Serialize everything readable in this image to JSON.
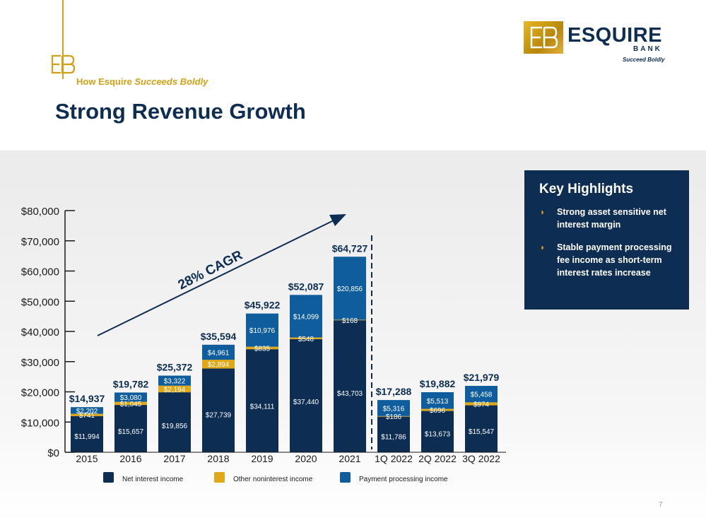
{
  "header": {
    "subtitle_prefix": "How Esquire",
    "subtitle_emphasis": "Succeeds Boldly",
    "title": "Strong Revenue Growth"
  },
  "logo": {
    "word": "ESQUIRE",
    "bank": "BANK",
    "tagline": "Succeed Boldly"
  },
  "key_highlights": {
    "title": "Key Highlights",
    "items": [
      "Strong asset sensitive net interest margin",
      "Stable payment processing fee income as short-term interest rates increase"
    ]
  },
  "colors": {
    "navy": "#0d2d52",
    "gold": "#e0a816",
    "blue": "#0f5d9c"
  },
  "page_number": "7",
  "chart_data": {
    "type": "bar",
    "stacked": true,
    "categories": [
      "2015",
      "2016",
      "2017",
      "2018",
      "2019",
      "2020",
      "2021",
      "1Q 2022",
      "2Q 2022",
      "3Q 2022"
    ],
    "series": [
      {
        "name": "Net interest income",
        "values": [
          11994,
          15657,
          19856,
          27739,
          34111,
          37440,
          43703,
          11786,
          13673,
          15547
        ],
        "labels": [
          "$11,994",
          "$15,657",
          "$19,856",
          "$27,739",
          "$34,111",
          "$37,440",
          "$43,703",
          "$11,786",
          "$13,673",
          "$15,547"
        ]
      },
      {
        "name": "Other noninterest income",
        "values": [
          741,
          1045,
          2194,
          2894,
          835,
          548,
          168,
          186,
          696,
          974
        ],
        "labels": [
          "$741",
          "$1,045",
          "$2,194",
          "$2,894",
          "$835",
          "$548",
          "$168",
          "$186",
          "$696",
          "$974"
        ]
      },
      {
        "name": "Payment processing income",
        "values": [
          2202,
          3080,
          3322,
          4961,
          10976,
          14099,
          20856,
          5316,
          5513,
          5458
        ],
        "labels": [
          "$2,202",
          "$3,080",
          "$3,322",
          "$4,961",
          "$10,976",
          "$14,099",
          "$20,856",
          "$5,316",
          "$5,513",
          "$5,458"
        ]
      }
    ],
    "totals": [
      "$14,937",
      "$19,782",
      "$25,372",
      "$35,594",
      "$45,922",
      "$52,087",
      "$64,727",
      "$17,288",
      "$19,882",
      "$21,979"
    ],
    "y_ticks": [
      "$0",
      "$10,000",
      "$20,000",
      "$30,000",
      "$40,000",
      "$50,000",
      "$60,000",
      "$70,000",
      "$80,000"
    ],
    "ylim": [
      0,
      80000
    ],
    "annotation": "28% CAGR",
    "legend_position": "bottom"
  }
}
